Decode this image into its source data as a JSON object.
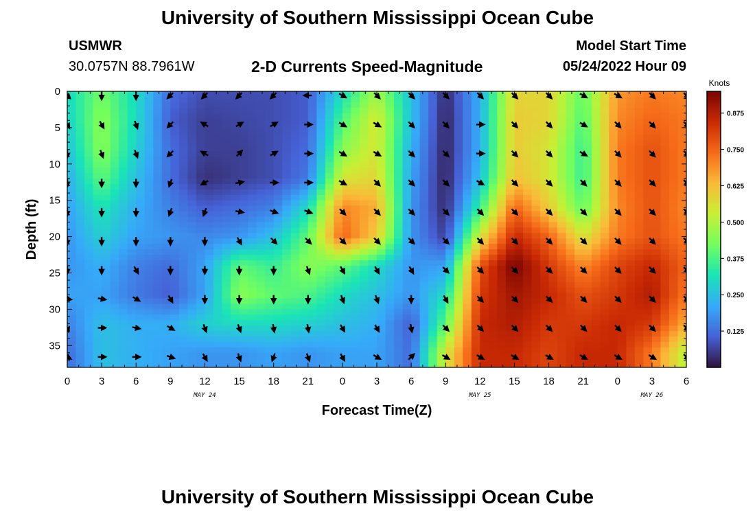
{
  "header": {
    "title": "University of Southern Mississippi Ocean Cube",
    "station": "USMWR",
    "coords": "30.0757N  88.7961W",
    "subtitle": "2-D Currents Speed-Magnitude",
    "model_start_label": "Model Start Time",
    "model_start_value": "05/24/2022 Hour 09"
  },
  "footer": {
    "title": "University of Southern Mississippi Ocean Cube"
  },
  "colors": {
    "colormap": [
      "#30123b",
      "#4662d7",
      "#36aaf9",
      "#1ae4b6",
      "#72fe5e",
      "#c8ef34",
      "#faba39",
      "#f66b19",
      "#ca2a04",
      "#7a0403"
    ]
  },
  "chart_data": {
    "type": "heatmap",
    "title": "2-D Currents Speed-Magnitude",
    "xlabel": "Forecast Time(Z)",
    "ylabel": "Depth (ft)",
    "colorbar_label": "Knots",
    "x_ticks": [
      "0",
      "3",
      "6",
      "9",
      "12",
      "15",
      "18",
      "21",
      "0",
      "3",
      "6",
      "9",
      "12",
      "15",
      "18",
      "21",
      "0",
      "3",
      "6"
    ],
    "x_range_hours": [
      0,
      54
    ],
    "date_labels": [
      {
        "label": "MAY 24",
        "hour": 12
      },
      {
        "label": "MAY 25",
        "hour": 36
      },
      {
        "label": "MAY 26",
        "hour": 51
      }
    ],
    "y_ticks": [
      0,
      5,
      10,
      15,
      20,
      25,
      30,
      35
    ],
    "ylim": [
      0,
      38
    ],
    "colorbar_ticks": [
      0.125,
      0.25,
      0.375,
      0.5,
      0.625,
      0.75,
      0.875
    ],
    "colorbar_tick_labels": [
      "0.125",
      "0.250",
      "0.375",
      "0.500",
      "0.625",
      "0.750",
      "0.875"
    ],
    "colorbar_range": [
      0,
      0.95
    ],
    "depths": [
      0,
      4,
      8,
      12,
      16,
      20,
      24,
      28,
      32,
      36
    ],
    "hours": [
      0,
      3,
      6,
      9,
      12,
      15,
      18,
      21,
      24,
      27,
      30,
      33,
      36,
      39,
      42,
      45,
      48,
      51,
      54
    ],
    "speed": [
      [
        0.3,
        0.42,
        0.3,
        0.12,
        0.08,
        0.08,
        0.08,
        0.1,
        0.3,
        0.48,
        0.25,
        0.03,
        0.22,
        0.58,
        0.58,
        0.4,
        0.68,
        0.72,
        0.7
      ],
      [
        0.28,
        0.45,
        0.3,
        0.1,
        0.06,
        0.07,
        0.08,
        0.1,
        0.38,
        0.55,
        0.25,
        0.02,
        0.22,
        0.6,
        0.58,
        0.38,
        0.7,
        0.75,
        0.72
      ],
      [
        0.25,
        0.45,
        0.28,
        0.12,
        0.06,
        0.06,
        0.08,
        0.12,
        0.45,
        0.55,
        0.22,
        0.02,
        0.22,
        0.6,
        0.55,
        0.35,
        0.72,
        0.78,
        0.72
      ],
      [
        0.22,
        0.4,
        0.25,
        0.12,
        0.04,
        0.06,
        0.08,
        0.14,
        0.55,
        0.58,
        0.2,
        0.02,
        0.25,
        0.62,
        0.55,
        0.35,
        0.72,
        0.78,
        0.72
      ],
      [
        0.2,
        0.32,
        0.22,
        0.15,
        0.1,
        0.12,
        0.15,
        0.3,
        0.7,
        0.65,
        0.18,
        0.03,
        0.35,
        0.75,
        0.6,
        0.4,
        0.7,
        0.78,
        0.7
      ],
      [
        0.18,
        0.28,
        0.2,
        0.18,
        0.16,
        0.18,
        0.25,
        0.4,
        0.75,
        0.6,
        0.18,
        0.06,
        0.55,
        0.85,
        0.75,
        0.55,
        0.72,
        0.78,
        0.72
      ],
      [
        0.18,
        0.22,
        0.15,
        0.12,
        0.2,
        0.4,
        0.35,
        0.45,
        0.4,
        0.3,
        0.18,
        0.2,
        0.78,
        0.95,
        0.82,
        0.7,
        0.8,
        0.85,
        0.75
      ],
      [
        0.2,
        0.2,
        0.14,
        0.1,
        0.2,
        0.45,
        0.4,
        0.38,
        0.3,
        0.25,
        0.18,
        0.3,
        0.82,
        0.9,
        0.85,
        0.78,
        0.82,
        0.88,
        0.72
      ],
      [
        0.15,
        0.25,
        0.22,
        0.22,
        0.28,
        0.3,
        0.3,
        0.28,
        0.25,
        0.22,
        0.1,
        0.4,
        0.85,
        0.88,
        0.82,
        0.82,
        0.85,
        0.82,
        0.65
      ],
      [
        0.12,
        0.25,
        0.22,
        0.2,
        0.18,
        0.18,
        0.2,
        0.18,
        0.2,
        0.2,
        0.12,
        0.55,
        0.85,
        0.85,
        0.8,
        0.85,
        0.85,
        0.72,
        0.5
      ]
    ],
    "direction_deg": [
      [
        135,
        180,
        180,
        225,
        225,
        225,
        225,
        270,
        120,
        135,
        135,
        135,
        135,
        135,
        135,
        120,
        120,
        135,
        135
      ],
      [
        150,
        150,
        160,
        225,
        300,
        60,
        60,
        90,
        120,
        120,
        135,
        135,
        90,
        135,
        135,
        120,
        135,
        135,
        135
      ],
      [
        180,
        160,
        160,
        225,
        300,
        45,
        60,
        90,
        120,
        120,
        135,
        135,
        90,
        135,
        135,
        120,
        135,
        135,
        135
      ],
      [
        180,
        180,
        180,
        200,
        240,
        80,
        90,
        90,
        120,
        135,
        135,
        135,
        120,
        135,
        135,
        135,
        135,
        135,
        135
      ],
      [
        180,
        180,
        180,
        200,
        200,
        100,
        110,
        110,
        135,
        135,
        135,
        135,
        135,
        135,
        135,
        135,
        135,
        135,
        135
      ],
      [
        180,
        180,
        180,
        180,
        180,
        150,
        135,
        135,
        135,
        135,
        135,
        135,
        135,
        135,
        135,
        135,
        135,
        135,
        135
      ],
      [
        180,
        180,
        150,
        180,
        180,
        180,
        180,
        160,
        150,
        150,
        150,
        135,
        135,
        135,
        135,
        135,
        135,
        135,
        135
      ],
      [
        100,
        100,
        120,
        150,
        180,
        180,
        180,
        180,
        160,
        160,
        180,
        150,
        135,
        135,
        135,
        135,
        135,
        135,
        135
      ],
      [
        160,
        90,
        100,
        120,
        160,
        160,
        170,
        170,
        150,
        150,
        170,
        135,
        135,
        135,
        135,
        135,
        135,
        135,
        135
      ],
      [
        120,
        90,
        90,
        110,
        150,
        160,
        200,
        160,
        150,
        120,
        45,
        120,
        120,
        120,
        120,
        120,
        120,
        120,
        135
      ]
    ]
  }
}
